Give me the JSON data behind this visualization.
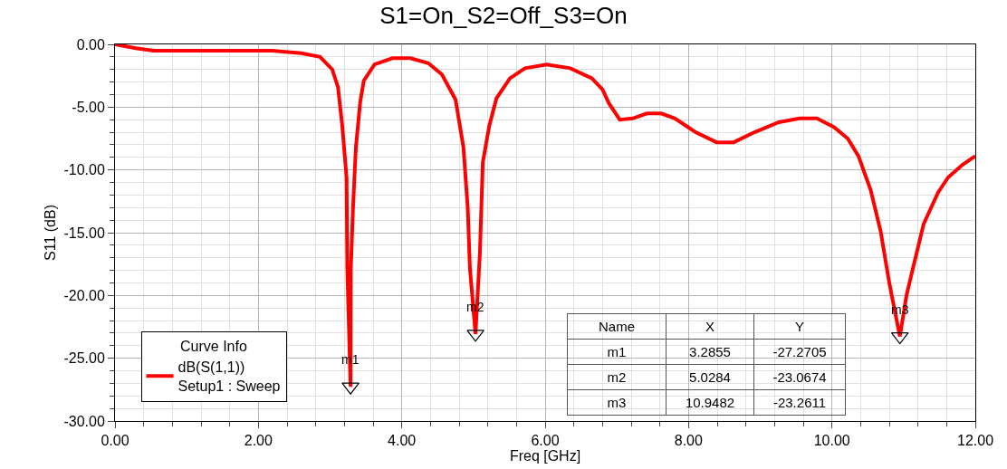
{
  "chart_data": {
    "type": "line",
    "title": "S1=On_S2=Off_S3=On",
    "xlabel": "Freq [GHz]",
    "ylabel": "S11 (dB)",
    "legend_title": "Curve Info",
    "xlim": [
      0,
      12
    ],
    "ylim": [
      -30,
      0
    ],
    "xticks": [
      {
        "value": 0,
        "label": "0.00"
      },
      {
        "value": 2,
        "label": "2.00"
      },
      {
        "value": 4,
        "label": "4.00"
      },
      {
        "value": 6,
        "label": "6.00"
      },
      {
        "value": 8,
        "label": "8.00"
      },
      {
        "value": 10,
        "label": "10.00"
      },
      {
        "value": 12,
        "label": "12.00"
      }
    ],
    "yticks": [
      {
        "value": -30,
        "label": "-30.00"
      },
      {
        "value": -25,
        "label": "-25.00"
      },
      {
        "value": -20,
        "label": "-20.00"
      },
      {
        "value": -15,
        "label": "-15.00"
      },
      {
        "value": -10,
        "label": "-10.00"
      },
      {
        "value": -5,
        "label": "-5.00"
      },
      {
        "value": 0,
        "label": "0.00"
      }
    ],
    "grid": true,
    "legend": "bottom left",
    "series": [
      {
        "name": "dB(S(1,1))\nSetup1 : Sweep",
        "color": "#ff0000",
        "x": [
          0,
          0.29,
          0.54,
          2.19,
          2.6,
          2.86,
          3.03,
          3.11,
          3.17,
          3.23,
          3.24,
          3.2855,
          3.29,
          3.32,
          3.36,
          3.42,
          3.47,
          3.62,
          3.87,
          4.12,
          4.37,
          4.56,
          4.75,
          4.86,
          4.92,
          4.95,
          5.0284,
          5.09,
          5.13,
          5.22,
          5.32,
          5.51,
          5.72,
          6.02,
          6.35,
          6.65,
          6.8,
          6.89,
          7.04,
          7.22,
          7.42,
          7.62,
          7.81,
          8.1,
          8.39,
          8.63,
          8.92,
          9.26,
          9.55,
          9.79,
          10.03,
          10.22,
          10.37,
          10.54,
          10.68,
          10.8,
          10.9482,
          11.04,
          11.14,
          11.28,
          11.48,
          11.62,
          11.82,
          12.0
        ],
        "values": [
          0,
          -0.3,
          -0.5,
          -0.5,
          -0.7,
          -1.0,
          -2.0,
          -3.4,
          -6.5,
          -10.6,
          -17.8,
          -27.2705,
          -17.8,
          -13,
          -8.2,
          -4.6,
          -2.9,
          -1.6,
          -1.1,
          -1.1,
          -1.5,
          -2.4,
          -4.4,
          -8.2,
          -13,
          -17.8,
          -23.0674,
          -16.6,
          -9.4,
          -6.5,
          -4.3,
          -2.7,
          -1.9,
          -1.6,
          -1.9,
          -2.7,
          -3.6,
          -4.7,
          -6.0,
          -5.9,
          -5.5,
          -5.5,
          -5.9,
          -7.0,
          -7.8,
          -7.8,
          -7.0,
          -6.2,
          -5.9,
          -5.9,
          -6.6,
          -7.5,
          -8.9,
          -11.6,
          -14.9,
          -19.0,
          -23.2611,
          -20.0,
          -17.6,
          -14.3,
          -11.8,
          -10.6,
          -9.6,
          -8.9
        ]
      },
      {
        "type": "scatter",
        "marker": "triangle",
        "color": "#000000",
        "x": [
          3.2855,
          5.0284,
          10.9482
        ],
        "values": [
          -27.2705,
          -23.0674,
          -23.2611
        ]
      }
    ],
    "annotations": [
      {
        "text": "m1",
        "x": 3.2855,
        "y": -27.2705
      },
      {
        "text": "m2",
        "x": 5.0284,
        "y": -23.0674
      },
      {
        "text": "m3",
        "x": 10.9482,
        "y": -23.2611
      },
      "Name",
      "X",
      "Y",
      "m1",
      "3.2855",
      "-27.2705",
      "m2",
      "5.0284",
      "-23.0674",
      "m3",
      "10.9482",
      "-23.2611"
    ]
  }
}
